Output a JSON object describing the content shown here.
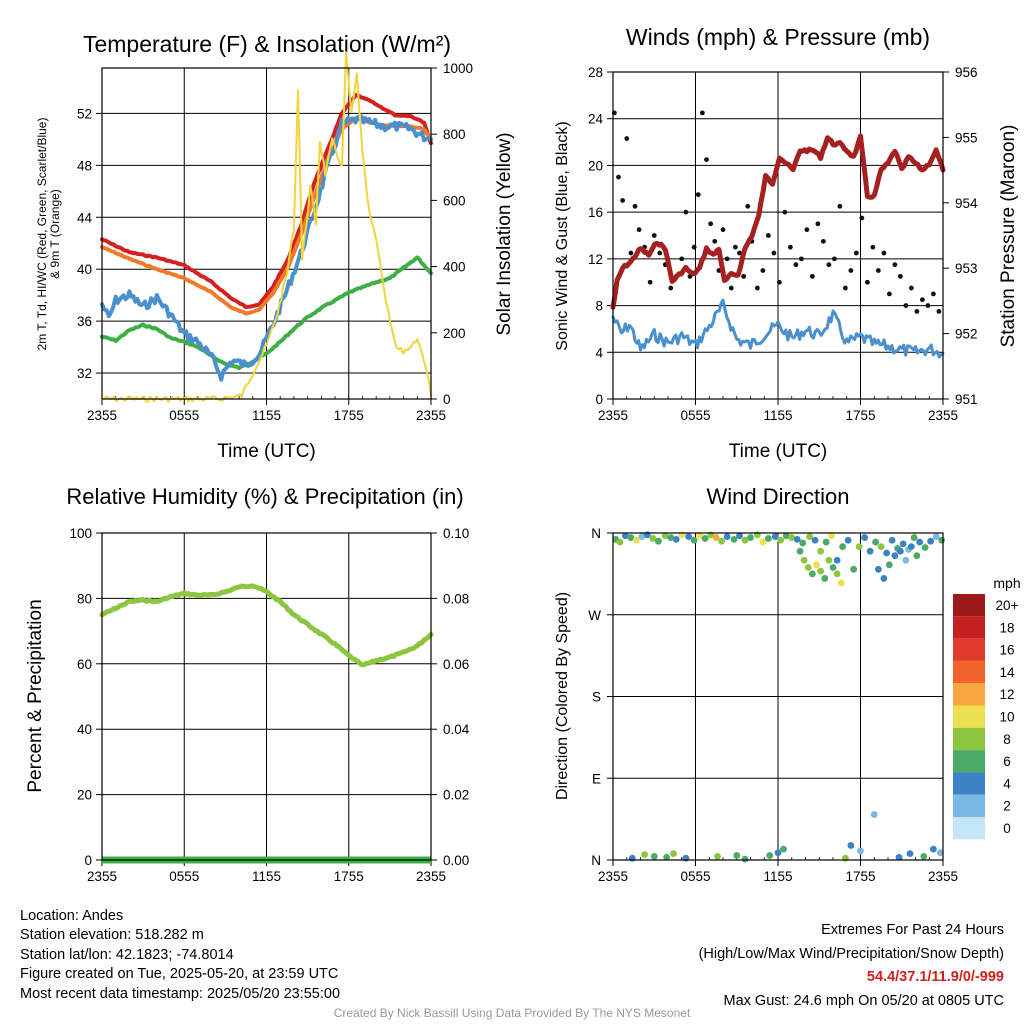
{
  "chart_data": [
    {
      "type": "line",
      "title": "Temperature (F) & Insolation (W/m²)",
      "xlabel": "Time (UTC)",
      "ylabel_left": "2m T, Td, HI/WC (Red, Green, Scarlet/Blue) & 9m T (Orange)",
      "ylabel_right": "Solar Insolation (Yellow)",
      "x_ticks": [
        "2355",
        "0555",
        "1155",
        "1755",
        "2355"
      ],
      "y_ticks_left": [
        32,
        36,
        40,
        44,
        48,
        52
      ],
      "y_ticks_right": [
        0,
        200,
        400,
        600,
        800,
        1000
      ],
      "ylim_left": [
        30,
        55.5
      ],
      "ylim_right": [
        0,
        1000
      ],
      "x_hours": [
        0,
        24
      ],
      "grid": true,
      "series": [
        {
          "name": "2m T",
          "color": "#d62020",
          "axis": "left",
          "x": [
            0,
            2,
            4,
            6,
            8,
            9.5,
            10.5,
            11.5,
            12.5,
            13.5,
            14.5,
            15.5,
            16.5,
            17.5,
            18.5,
            19.5,
            20.5,
            21.5,
            22.5,
            23.5,
            24
          ],
          "y": [
            42.3,
            41.3,
            40.9,
            40.3,
            39.0,
            37.7,
            37.1,
            37.3,
            38.7,
            40.6,
            43.3,
            46.7,
            49.3,
            52.0,
            53.4,
            53.0,
            52.4,
            51.8,
            51.8,
            51.3,
            49.7
          ]
        },
        {
          "name": "9m T",
          "color": "#f07a2a",
          "axis": "left",
          "x": [
            0,
            2,
            4,
            6,
            8,
            9.5,
            10.5,
            11.5,
            12.5,
            13.5,
            14.5,
            15.5,
            16.5,
            17.5,
            18.5,
            19.5,
            20.5,
            21.5,
            22.5,
            23.5,
            24
          ],
          "y": [
            41.7,
            40.8,
            40.0,
            39.3,
            38.2,
            37.0,
            36.6,
            36.9,
            38.2,
            40.0,
            42.6,
            45.6,
            48.5,
            50.8,
            51.6,
            51.3,
            51.1,
            51.0,
            51.0,
            50.8,
            50.0
          ]
        },
        {
          "name": "Td",
          "color": "#3cb044",
          "axis": "left",
          "x": [
            0,
            1,
            2,
            3,
            4,
            5,
            6,
            7,
            8,
            9,
            10,
            11,
            12,
            13,
            14,
            15,
            16,
            17,
            18,
            19,
            20,
            21,
            22,
            23,
            24
          ],
          "y": [
            34.8,
            34.5,
            35.3,
            35.7,
            35.4,
            34.7,
            34.4,
            34.0,
            33.3,
            32.7,
            32.4,
            32.9,
            33.5,
            34.4,
            35.4,
            36.3,
            37.0,
            37.6,
            38.2,
            38.6,
            39.0,
            39.3,
            40.1,
            40.9,
            39.7
          ]
        },
        {
          "name": "HI/WC",
          "color": "#4a90cc",
          "axis": "left",
          "x": [
            0,
            0.5,
            1,
            2,
            3,
            4,
            5,
            6,
            7,
            8,
            8.7,
            9.5,
            10.5,
            11.5,
            12.5,
            13.5,
            14.5,
            15.5,
            16.5,
            17.5,
            18.5,
            19.5,
            20.5,
            21.5,
            22.5,
            23.5,
            24
          ],
          "y": [
            37.3,
            36.2,
            37.6,
            38.0,
            37.1,
            37.8,
            36.5,
            35.0,
            34.4,
            33.2,
            31.8,
            33.0,
            32.6,
            33.5,
            35.8,
            38.4,
            41.2,
            44.5,
            48.0,
            51.2,
            51.5,
            51.3,
            51.0,
            51.0,
            50.8,
            50.2,
            50.0
          ]
        },
        {
          "name": "Solar Insolation",
          "color": "#f2d43c",
          "axis": "right",
          "x": [
            0,
            8.5,
            10.2,
            11,
            12,
            12.8,
            13.5,
            14,
            14.3,
            14.6,
            15.2,
            15.6,
            15.9,
            16.3,
            16.8,
            17.5,
            17.8,
            18.2,
            18.6,
            19.0,
            19.5,
            20.0,
            20.7,
            21.5,
            22.3,
            23.0,
            23.5,
            23.8,
            24
          ],
          "y": [
            0,
            0,
            10,
            80,
            160,
            260,
            380,
            520,
            940,
            420,
            640,
            530,
            780,
            680,
            780,
            700,
            1040,
            860,
            980,
            740,
            560,
            480,
            300,
            150,
            140,
            180,
            120,
            60,
            10
          ]
        }
      ]
    },
    {
      "type": "scatter",
      "title": "Winds (mph) & Pressure (mb)",
      "xlabel": "Time (UTC)",
      "ylabel_left": "Sonic Wind & Gust (Blue, Black)",
      "ylabel_right": "Station Pressure (Maroon)",
      "x_ticks": [
        "2355",
        "0555",
        "1155",
        "1755",
        "2355"
      ],
      "y_ticks_left": [
        0,
        4,
        8,
        12,
        16,
        20,
        24,
        28
      ],
      "y_ticks_right": [
        951,
        952,
        953,
        954,
        955,
        956
      ],
      "ylim_left": [
        0,
        28
      ],
      "ylim_right": [
        951,
        956
      ],
      "grid": true,
      "series": [
        {
          "name": "Sonic Wind",
          "color": "#4a90cc",
          "kind": "line",
          "x": [
            0,
            0.6,
            1.2,
            2,
            3,
            4,
            5,
            6,
            7,
            8,
            9,
            10,
            11,
            12,
            13,
            14,
            15,
            16,
            17,
            18,
            19,
            20,
            21,
            22,
            23,
            24
          ],
          "y": [
            7.0,
            5.6,
            6.4,
            4.2,
            5.5,
            4.8,
            5.4,
            4.6,
            6.2,
            8.0,
            5.1,
            4.6,
            5.5,
            6.3,
            5.2,
            5.9,
            5.4,
            7.2,
            4.8,
            5.3,
            4.7,
            4.5,
            4.2,
            4.0,
            4.3,
            3.9
          ]
        },
        {
          "name": "Gust",
          "color": "#111111",
          "kind": "points",
          "x": [
            0.1,
            0.4,
            0.7,
            1.0,
            1.3,
            1.6,
            1.9,
            2.3,
            2.7,
            3.0,
            3.4,
            3.8,
            4.2,
            4.6,
            5.0,
            5.3,
            5.6,
            5.9,
            6.2,
            6.5,
            6.8,
            7.1,
            7.4,
            7.7,
            8.0,
            8.3,
            8.6,
            8.9,
            9.2,
            9.5,
            9.8,
            10.1,
            10.5,
            10.9,
            11.3,
            11.7,
            12.1,
            12.5,
            12.9,
            13.3,
            13.7,
            14.1,
            14.5,
            14.9,
            15.3,
            15.7,
            16.1,
            16.5,
            16.9,
            17.3,
            17.7,
            18.1,
            18.5,
            18.9,
            19.3,
            19.7,
            20.1,
            20.5,
            20.9,
            21.3,
            21.7,
            22.1,
            22.5,
            22.9,
            23.3,
            23.7
          ],
          "y": [
            24.5,
            19.0,
            17.0,
            22.3,
            12.5,
            16.5,
            14.5,
            13.0,
            10.0,
            14.0,
            12.5,
            11.5,
            9.5,
            10.5,
            12.0,
            16.0,
            10.5,
            13.0,
            17.5,
            24.5,
            20.5,
            15.0,
            13.5,
            11.0,
            14.5,
            12.0,
            9.5,
            13.0,
            12.5,
            10.5,
            16.5,
            13.5,
            9.5,
            11.0,
            14.0,
            12.5,
            10.0,
            16.0,
            13.0,
            11.5,
            12.0,
            14.5,
            10.5,
            15.0,
            13.5,
            11.5,
            12.0,
            16.5,
            9.5,
            11.0,
            12.5,
            15.5,
            10.0,
            13.0,
            11.0,
            12.5,
            9.0,
            11.5,
            10.5,
            8.0,
            9.5,
            7.5,
            8.5,
            8.0,
            9.0,
            7.5
          ]
        },
        {
          "name": "Station Pressure",
          "color": "#a52020",
          "kind": "line",
          "axis": "right",
          "x": [
            0,
            0.3,
            0.7,
            1.3,
            2.0,
            2.6,
            3.2,
            3.8,
            4.3,
            4.8,
            5.3,
            5.8,
            6.3,
            6.8,
            7.3,
            7.7,
            8.1,
            8.6,
            9.1,
            9.6,
            10.1,
            10.6,
            11.1,
            11.6,
            12.1,
            12.6,
            13.1,
            13.6,
            14.1,
            14.6,
            15.1,
            15.6,
            16.0,
            16.5,
            17.0,
            17.5,
            18.0,
            18.5,
            19.0,
            19.5,
            20.0,
            20.5,
            21.0,
            21.5,
            22.0,
            22.5,
            23.0,
            23.5,
            24.0
          ],
          "y": [
            952.4,
            952.8,
            953.0,
            953.1,
            953.3,
            953.2,
            953.4,
            953.3,
            952.8,
            952.9,
            953.0,
            952.9,
            953.0,
            953.3,
            953.2,
            953.3,
            952.8,
            952.9,
            952.9,
            953.3,
            953.5,
            953.8,
            954.4,
            954.3,
            954.7,
            954.6,
            954.5,
            954.8,
            954.8,
            954.8,
            954.7,
            955.0,
            954.9,
            954.9,
            954.8,
            954.7,
            955.0,
            954.1,
            954.1,
            954.5,
            954.6,
            954.8,
            954.5,
            954.7,
            954.6,
            954.5,
            954.6,
            954.8,
            954.5
          ]
        }
      ]
    },
    {
      "type": "line",
      "title": "Relative Humidity (%) & Precipitation (in)",
      "xlabel": "",
      "ylabel_left": "Percent & Precipitation",
      "x_ticks": [
        "2355",
        "0555",
        "1155",
        "1755",
        "2355"
      ],
      "y_ticks_left": [
        0,
        20,
        40,
        60,
        80,
        100
      ],
      "y_ticks_right": [
        "0.00",
        "0.02",
        "0.04",
        "0.06",
        "0.08",
        "0.10"
      ],
      "ylim_left": [
        0,
        100
      ],
      "ylim_right": [
        0,
        0.1
      ],
      "grid": true,
      "series": [
        {
          "name": "Relative Humidity",
          "color": "#8cc63f",
          "x": [
            0,
            1,
            2,
            3,
            4,
            5,
            6,
            7,
            8,
            9,
            10,
            11,
            12,
            13,
            14,
            15,
            16,
            17,
            18,
            19,
            20,
            21,
            22,
            23,
            24
          ],
          "y": [
            75,
            77,
            79,
            79.5,
            79,
            80.5,
            81.5,
            81,
            81,
            82,
            83.5,
            84,
            82,
            79,
            75,
            72,
            69,
            66,
            62.5,
            59.5,
            61,
            62,
            63.5,
            65.5,
            69
          ]
        },
        {
          "name": "Precipitation",
          "color": "#3cb044",
          "axis": "right",
          "x": [
            0,
            24
          ],
          "y": [
            0,
            0
          ]
        }
      ]
    },
    {
      "type": "scatter",
      "title": "Wind Direction",
      "ylabel": "Direction (Colored By Speed)",
      "x_ticks": [
        "2355",
        "0555",
        "1155",
        "1755",
        "2355"
      ],
      "y_ticks": [
        "N",
        "E",
        "S",
        "W",
        "N"
      ],
      "ylim": [
        0,
        360
      ],
      "grid": true,
      "legend": {
        "title": "mph",
        "position": "right",
        "labels": [
          "20+",
          "18",
          "16",
          "14",
          "12",
          "10",
          "8",
          "6",
          "4",
          "2",
          "0"
        ],
        "colors": [
          "#9c1a1a",
          "#c42020",
          "#e03a2a",
          "#f0642c",
          "#f8a640",
          "#ece050",
          "#8cc63f",
          "#4aaa66",
          "#3c82c4",
          "#7cb8e6",
          "#c4e4f8"
        ]
      },
      "points": {
        "x": [
          0.2,
          0.5,
          0.9,
          1.3,
          1.7,
          2.1,
          2.5,
          2.9,
          3.3,
          3.8,
          4.2,
          4.6,
          5.0,
          5.5,
          5.9,
          6.3,
          6.7,
          7.1,
          7.5,
          7.9,
          8.3,
          8.8,
          9.2,
          9.6,
          10.0,
          10.5,
          10.9,
          11.3,
          11.8,
          12.2,
          12.6,
          13.0,
          13.4,
          13.8,
          14.3,
          14.7,
          15.1,
          15.5,
          15.9,
          16.3,
          16.7,
          17.1,
          17.5,
          17.9,
          18.3,
          18.7,
          19.1,
          19.5,
          19.9,
          20.3,
          20.7,
          21.1,
          21.5,
          21.9,
          22.3,
          22.7,
          23.1,
          23.5,
          23.9,
          13.6,
          13.9,
          14.2,
          14.5,
          14.8,
          15.1,
          15.4,
          15.7,
          16.0,
          16.3,
          16.6,
          19.3,
          19.7,
          20.1,
          20.5,
          20.9,
          21.3,
          21.7,
          22.1,
          1.4,
          2.3,
          3.0,
          3.9,
          4.4,
          5.3,
          7.6,
          9.0,
          9.6,
          11.4,
          12.0,
          12.4,
          16.9,
          17.3,
          18.0,
          19.0,
          20.8,
          21.6,
          22.6,
          23.3,
          23.8
        ],
        "y": [
          353,
          350,
          357,
          355,
          352,
          356,
          358,
          354,
          351,
          357,
          355,
          353,
          358,
          356,
          352,
          357,
          354,
          358,
          355,
          351,
          356,
          353,
          357,
          352,
          355,
          358,
          350,
          354,
          356,
          352,
          357,
          355,
          353,
          349,
          356,
          352,
          340,
          350,
          357,
          330,
          345,
          352,
          320,
          345,
          355,
          340,
          350,
          345,
          338,
          352,
          343,
          348,
          342,
          355,
          350,
          344,
          351,
          356,
          352,
          340,
          330,
          322,
          315,
          325,
          318,
          310,
          330,
          322,
          315,
          305,
          320,
          310,
          325,
          335,
          340,
          330,
          345,
          335,
          2,
          6,
          4,
          3,
          7,
          2,
          4,
          5,
          1,
          5,
          8,
          12,
          2,
          16,
          10,
          50,
          3,
          7,
          4,
          12,
          8
        ],
        "speed": [
          5,
          8,
          3,
          6,
          9,
          2,
          4,
          7,
          5,
          8,
          6,
          3,
          9,
          4,
          6,
          10,
          5,
          7,
          12,
          8,
          3,
          6,
          4,
          8,
          5,
          7,
          9,
          6,
          4,
          8,
          5,
          7,
          3,
          6,
          8,
          4,
          7,
          5,
          9,
          4,
          6,
          3,
          5,
          8,
          4,
          3,
          5,
          7,
          4,
          3,
          6,
          4,
          2,
          5,
          3,
          6,
          4,
          2,
          5,
          6,
          8,
          7,
          6,
          9,
          7,
          6,
          8,
          5,
          7,
          9,
          4,
          3,
          5,
          4,
          3,
          2,
          4,
          5,
          4,
          7,
          5,
          6,
          8,
          4,
          7,
          6,
          5,
          6,
          4,
          5,
          7,
          4,
          2,
          1,
          4,
          3,
          5,
          4,
          2
        ]
      }
    }
  ],
  "footer": {
    "location": "Location: Andes",
    "elevation": "Station elevation: 518.282 m",
    "latlon": "Station lat/lon: 42.1823; -74.8014",
    "created": "Figure created on Tue, 2025-05-20, at 23:59 UTC",
    "recent": "Most recent data timestamp: 2025/05/20 23:55:00",
    "extremes_title": "Extremes For Past 24 Hours",
    "extremes_legend": "(High/Low/Max Wind/Precipitation/Snow Depth)",
    "extremes_values": "54.4/37.1/11.9/0/-999",
    "max_gust": "Max Gust: 24.6 mph On 05/20 at 0805 UTC",
    "credit": "Created By Nick Bassill Using Data Provided By The NYS Mesonet"
  }
}
